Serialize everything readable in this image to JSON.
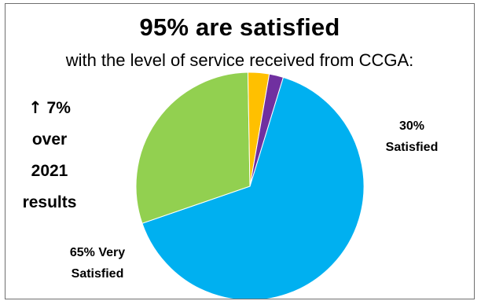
{
  "chart_data": {
    "type": "pie",
    "title": "95% are satisfied",
    "subtitle": "with the level of service received from CCGA:",
    "slices": [
      {
        "value": 65,
        "color": "#00b0f0",
        "label_lines": [
          "65% Very",
          "Satisfied"
        ]
      },
      {
        "value": 30,
        "color": "#92d050",
        "label_lines": [
          "30%",
          "Satisfied"
        ]
      },
      {
        "value": 3,
        "color": "#ffc000",
        "label_lines": []
      },
      {
        "value": 2,
        "color": "#7030a0",
        "label_lines": []
      }
    ],
    "start_angle_deg": 17,
    "direction": "clockwise"
  },
  "side_note": {
    "arrow": "↑",
    "line1": "7%",
    "line2": "over",
    "line3": "2021",
    "line4": "results"
  }
}
